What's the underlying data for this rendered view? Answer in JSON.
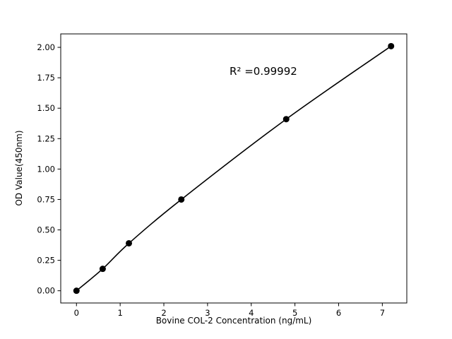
{
  "chart_data": {
    "type": "scatter",
    "x": [
      0,
      0.6,
      1.2,
      2.4,
      4.8,
      7.2
    ],
    "y": [
      0.0,
      0.18,
      0.39,
      0.75,
      1.41,
      2.01
    ],
    "title": "",
    "xlabel": "Bovine COL-2 Concentration (ng/mL)",
    "ylabel": "OD Value(450nm)",
    "xlim": [
      -0.36,
      7.56
    ],
    "ylim": [
      -0.1005,
      2.1105
    ],
    "xticks": [
      0,
      1,
      2,
      3,
      4,
      5,
      6,
      7
    ],
    "xtick_labels": [
      "0",
      "1",
      "2",
      "3",
      "4",
      "5",
      "6",
      "7"
    ],
    "yticks": [
      0.0,
      0.25,
      0.5,
      0.75,
      1.0,
      1.25,
      1.5,
      1.75,
      2.0
    ],
    "ytick_labels": [
      "0.00",
      "0.25",
      "0.50",
      "0.75",
      "1.00",
      "1.25",
      "1.50",
      "1.75",
      "2.00"
    ],
    "annotation": "R² =0.99992",
    "legend": null,
    "grid": false,
    "line_color": "#000000",
    "marker_color": "#000000",
    "background_color": "#ffffff"
  }
}
